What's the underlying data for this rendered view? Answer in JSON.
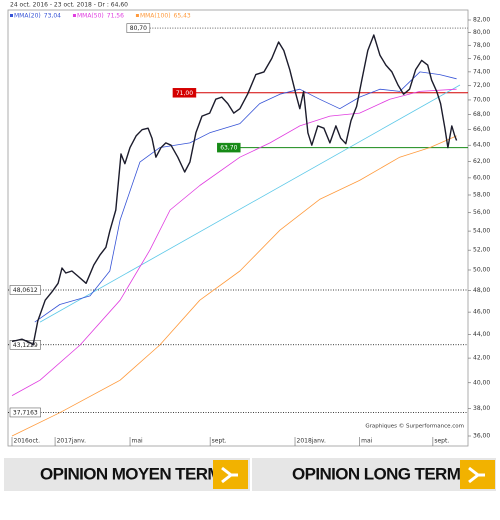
{
  "header": "24 oct. 2016 - 23 oct. 2018 - Dr : 64,60",
  "chart_data": {
    "type": "line",
    "credit": "Graphiques © Surperformance.com",
    "log_scale": true,
    "xlim": [
      0,
      104
    ],
    "xticks": [
      {
        "value": 0,
        "label": "2016oct."
      },
      {
        "value": 10,
        "label": "2017janv."
      },
      {
        "value": 27.4,
        "label": "mai"
      },
      {
        "value": 46,
        "label": "sept."
      },
      {
        "value": 65.7,
        "label": "2018janv."
      },
      {
        "value": 80.7,
        "label": "mai"
      },
      {
        "value": 97.7,
        "label": "sept."
      }
    ],
    "ylim": [
      36,
      82
    ],
    "yticks": [
      {
        "value": 36,
        "label": "36,00"
      },
      {
        "value": 38,
        "label": "38,00"
      },
      {
        "value": 40,
        "label": "40,00"
      },
      {
        "value": 42,
        "label": "42,00"
      },
      {
        "value": 44,
        "label": "44,00"
      },
      {
        "value": 46,
        "label": "46,00"
      },
      {
        "value": 48,
        "label": "48,00"
      },
      {
        "value": 50,
        "label": "50,00"
      },
      {
        "value": 52,
        "label": "52,00"
      },
      {
        "value": 54,
        "label": "54,00"
      },
      {
        "value": 56,
        "label": "56,00"
      },
      {
        "value": 58,
        "label": "58,00"
      },
      {
        "value": 60,
        "label": "60,00"
      },
      {
        "value": 62,
        "label": "62,00"
      },
      {
        "value": 64,
        "label": "64,00"
      },
      {
        "value": 66,
        "label": "66,00"
      },
      {
        "value": 68,
        "label": "68,00"
      },
      {
        "value": 70,
        "label": "70,00"
      },
      {
        "value": 72,
        "label": "72,00"
      },
      {
        "value": 74,
        "label": "74,00"
      },
      {
        "value": 76,
        "label": "76,00"
      },
      {
        "value": 78,
        "label": "78,00"
      },
      {
        "value": 80,
        "label": "80,00"
      },
      {
        "value": 82,
        "label": "82,00"
      }
    ],
    "price": {
      "color": "#1c1c2c",
      "x": [
        0,
        2.3,
        4.2,
        4.9,
        6.0,
        7.7,
        9.3,
        10.7,
        11.6,
        12.5,
        13.9,
        15.3,
        17.2,
        19.0,
        20.4,
        21.8,
        22.7,
        24.1,
        25.3,
        26.2,
        27.4,
        28.8,
        30.2,
        31.6,
        32.5,
        33.4,
        34.6,
        35.7,
        36.9,
        38.5,
        40.1,
        41.3,
        42.7,
        44.1,
        45.9,
        47.3,
        48.7,
        50.1,
        51.5,
        52.9,
        54.7,
        56.6,
        58.5,
        60.3,
        61.9,
        63.1,
        64.5,
        65.9,
        66.8,
        67.7,
        68.7,
        69.6,
        71.0,
        72.4,
        73.8,
        75.2,
        76.3,
        77.5,
        78.7,
        80.0,
        81.2,
        82.6,
        84.0,
        85.4,
        86.8,
        88.2,
        89.6,
        90.9,
        92.3,
        93.7,
        95.1,
        96.5,
        97.4,
        98.6,
        99.5,
        100.5,
        101.2,
        102.1,
        102.8,
        103.2
      ],
      "values": [
        43.4,
        43.6,
        43.3,
        43.1,
        45.2,
        47.1,
        47.9,
        48.7,
        50.2,
        49.7,
        49.9,
        49.4,
        48.7,
        50.5,
        51.5,
        52.3,
        54.0,
        56.3,
        62.9,
        61.7,
        63.7,
        65.2,
        66.0,
        66.2,
        64.9,
        62.5,
        63.7,
        64.3,
        64.0,
        62.5,
        60.7,
        61.9,
        65.6,
        67.8,
        68.2,
        70.1,
        70.4,
        69.5,
        68.2,
        68.8,
        70.8,
        73.6,
        74.0,
        76.0,
        78.5,
        77.2,
        74.3,
        70.8,
        68.8,
        71.2,
        65.6,
        64.0,
        66.5,
        66.2,
        64.3,
        66.5,
        64.9,
        64.2,
        67.2,
        69.1,
        72.8,
        77.2,
        79.6,
        76.5,
        75.0,
        74.0,
        72.1,
        70.8,
        71.5,
        74.3,
        75.7,
        75.0,
        72.8,
        71.2,
        69.5,
        66.2,
        63.7,
        66.5,
        65.2,
        64.6
      ]
    },
    "trend_line": {
      "color": "#5bc8e8",
      "x": [
        6.5,
        104
      ],
      "values": [
        45.1,
        72.1
      ]
    },
    "series": [
      {
        "name": "MMA(20)",
        "last": "73,04",
        "color": "#3653d6",
        "x": [
          5.3,
          11.1,
          18.1,
          22.7,
          25.1,
          29.7,
          34.3,
          41.3,
          45.9,
          52.9,
          57.5,
          62.2,
          66.8,
          71.4,
          76.1,
          80.7,
          85.4,
          90.0,
          94.7,
          99.3,
          103.2
        ],
        "values": [
          45.1,
          46.7,
          47.5,
          49.9,
          55.2,
          61.9,
          63.7,
          64.3,
          65.6,
          66.8,
          69.5,
          70.8,
          71.5,
          70.1,
          68.8,
          70.4,
          71.5,
          71.2,
          74.0,
          73.6,
          73.0
        ]
      },
      {
        "name": "MMA(50)",
        "last": "71,56",
        "color": "#e03ce0",
        "x": [
          0,
          6.5,
          15.8,
          25.1,
          32.0,
          36.7,
          43.6,
          52.9,
          59.9,
          66.8,
          73.8,
          80.7,
          87.7,
          94.7,
          103.2
        ],
        "values": [
          39.0,
          40.2,
          43.1,
          47.1,
          52.0,
          56.3,
          59.1,
          62.5,
          64.3,
          66.5,
          67.8,
          68.2,
          70.1,
          71.2,
          71.5
        ]
      },
      {
        "name": "MMA(100)",
        "last": "65,43",
        "color": "#ff9a3c",
        "x": [
          0,
          11.1,
          25.1,
          34.3,
          43.6,
          52.9,
          62.2,
          71.4,
          80.7,
          90.0,
          97.0,
          103.2
        ],
        "values": [
          36.0,
          37.7,
          40.2,
          43.1,
          47.1,
          49.9,
          54.1,
          57.5,
          59.7,
          62.5,
          63.7,
          65.2
        ]
      }
    ],
    "levels": [
      {
        "value": 80.7,
        "label": "80,70",
        "color": "#000000",
        "style": "dotted",
        "from": 32
      },
      {
        "value": 71,
        "label": "71,00",
        "color": "#d40000",
        "style": "solid",
        "from": 42.7
      },
      {
        "value": 63.7,
        "label": "63,70",
        "color": "#178a17",
        "style": "solid",
        "from": 53
      },
      {
        "value": 48.0612,
        "label": "48,0612",
        "color": "#000000",
        "style": "dotted",
        "from": 0
      },
      {
        "value": 43.1229,
        "label": "43,1229",
        "color": "#000000",
        "style": "dotted",
        "from": 0
      },
      {
        "value": 37.7163,
        "label": "37,7163",
        "color": "#000000",
        "style": "dotted",
        "from": 0
      }
    ]
  },
  "buttons": [
    "OPINION MOYEN TERME",
    "OPINION LONG TERME"
  ]
}
